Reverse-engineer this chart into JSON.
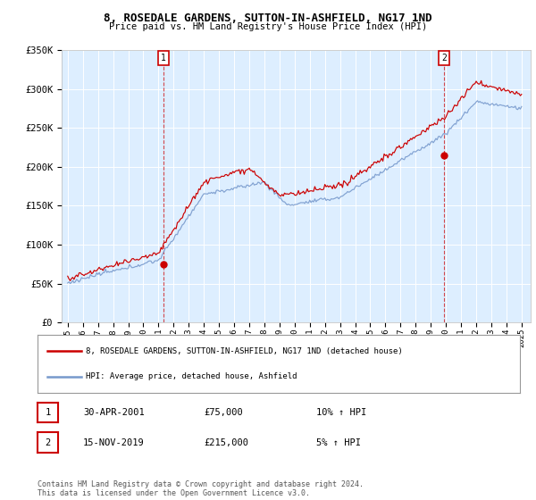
{
  "title": "8, ROSEDALE GARDENS, SUTTON-IN-ASHFIELD, NG17 1ND",
  "subtitle": "Price paid vs. HM Land Registry's House Price Index (HPI)",
  "red_label": "8, ROSEDALE GARDENS, SUTTON-IN-ASHFIELD, NG17 1ND (detached house)",
  "blue_label": "HPI: Average price, detached house, Ashfield",
  "footer": "Contains HM Land Registry data © Crown copyright and database right 2024.\nThis data is licensed under the Open Government Licence v3.0.",
  "transactions": [
    {
      "num": "1",
      "date": "30-APR-2001",
      "price": "£75,000",
      "hpi": "10% ↑ HPI"
    },
    {
      "num": "2",
      "date": "15-NOV-2019",
      "price": "£215,000",
      "hpi": "5% ↑ HPI"
    }
  ],
  "sale1_year": 2001.33,
  "sale1_price": 75000,
  "sale2_year": 2019.88,
  "sale2_price": 215000,
  "ylim": [
    0,
    350000
  ],
  "yticks": [
    0,
    50000,
    100000,
    150000,
    200000,
    250000,
    300000,
    350000
  ],
  "ytick_labels": [
    "£0",
    "£50K",
    "£100K",
    "£150K",
    "£200K",
    "£250K",
    "£300K",
    "£350K"
  ],
  "background_color": "#ffffff",
  "plot_bg_color": "#ddeeff",
  "grid_color": "#ffffff",
  "red_color": "#cc0000",
  "blue_color": "#7799cc"
}
